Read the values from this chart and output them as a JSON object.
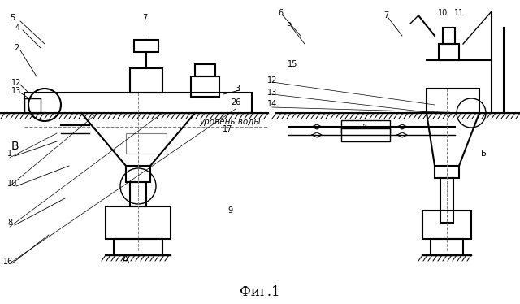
{
  "title": "Фиг.1",
  "label_В": "В",
  "label_А": "А",
  "label_Б": "Б",
  "water_level_text": "уровень воды",
  "background": "#ffffff",
  "line_color": "#000000",
  "hatch_color": "#000000",
  "figsize": [
    6.4,
    3.74
  ],
  "dpi": 100
}
